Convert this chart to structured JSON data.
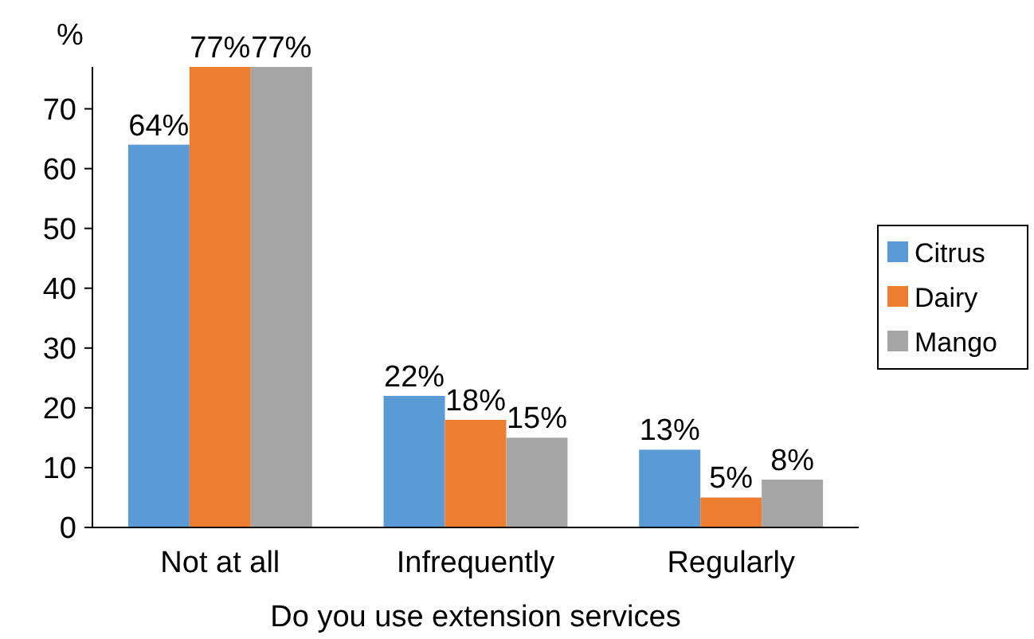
{
  "chart_data": {
    "type": "bar",
    "ylabel": "%",
    "xlabel": "Do you use extension services",
    "categories": [
      "Not at all",
      "Infrequently",
      "Regularly"
    ],
    "series": [
      {
        "name": "Citrus",
        "color": "#5b9bd5",
        "values": [
          64,
          22,
          13
        ],
        "value_labels": [
          "64%",
          "22%",
          "13%"
        ]
      },
      {
        "name": "Dairy",
        "color": "#ed7d31",
        "values": [
          77,
          18,
          5
        ],
        "value_labels": [
          "77%",
          "18%",
          "5%"
        ]
      },
      {
        "name": "Mango",
        "color": "#a5a5a5",
        "values": [
          77,
          15,
          8
        ],
        "value_labels": [
          "77%",
          "15%",
          "8%"
        ]
      }
    ],
    "ylim": [
      0,
      77
    ],
    "yticks": [
      0,
      10,
      20,
      30,
      40,
      50,
      60,
      70
    ],
    "grid": false,
    "legend": "right"
  }
}
